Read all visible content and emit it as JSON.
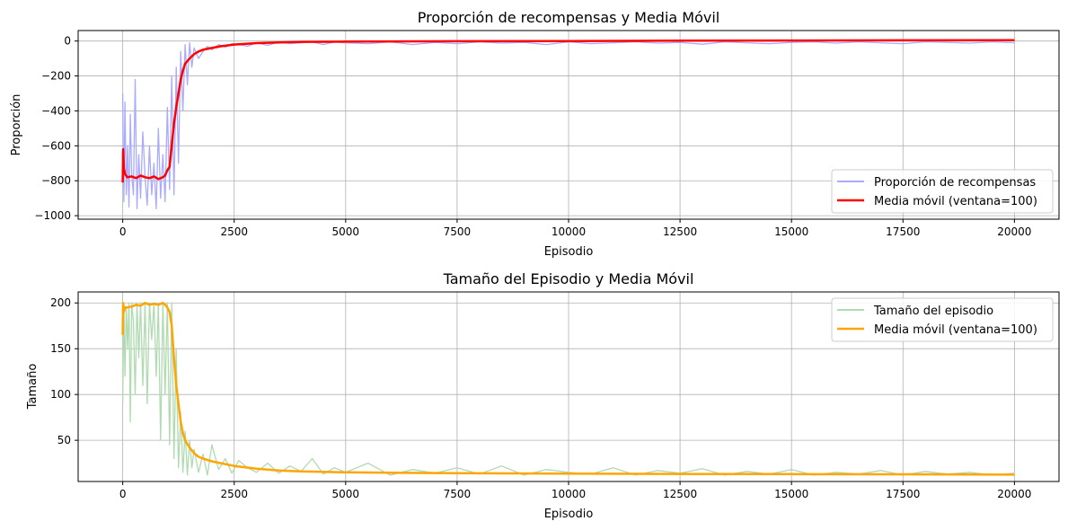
{
  "chart_data": [
    {
      "type": "line",
      "title": "Proporción de recompensas y Media Móvil",
      "xlabel": "Episodio",
      "ylabel": "Proporción",
      "xlim": [
        -1000,
        21000
      ],
      "ylim": [
        -1020,
        60
      ],
      "xticks": [
        0,
        2500,
        5000,
        7500,
        10000,
        12500,
        15000,
        17500,
        20000
      ],
      "xtick_labels": [
        "0",
        "2500",
        "5000",
        "7500",
        "10000",
        "12500",
        "15000",
        "17500",
        "20000"
      ],
      "yticks": [
        0,
        -200,
        -400,
        -600,
        -800,
        -1000
      ],
      "ytick_labels": [
        "0",
        "−200",
        "−400",
        "−600",
        "−800",
        "−1000"
      ],
      "grid": true,
      "legend_position": "lower-right",
      "series": [
        {
          "name": "Proporción de recompensas",
          "color": "#aaaaff",
          "kind": "raw",
          "x": [
            0,
            25,
            50,
            80,
            110,
            140,
            170,
            200,
            240,
            280,
            320,
            360,
            400,
            450,
            500,
            550,
            600,
            650,
            700,
            750,
            800,
            850,
            900,
            950,
            1000,
            1050,
            1100,
            1150,
            1200,
            1250,
            1300,
            1350,
            1400,
            1450,
            1500,
            1550,
            1600,
            1700,
            1800,
            1900,
            2000,
            2150,
            2300,
            2450,
            2600,
            2800,
            3000,
            3250,
            3500,
            3750,
            4000,
            4250,
            4500,
            4750,
            5000,
            5500,
            6000,
            6500,
            7000,
            7500,
            8000,
            8500,
            9000,
            9500,
            10000,
            10500,
            11000,
            11500,
            12000,
            12500,
            13000,
            13500,
            14000,
            14500,
            15000,
            15500,
            16000,
            16500,
            17000,
            17500,
            18000,
            18500,
            19000,
            19500,
            20000
          ],
          "y": [
            -300,
            -920,
            -350,
            -880,
            -600,
            -950,
            -420,
            -760,
            -880,
            -220,
            -960,
            -650,
            -900,
            -520,
            -780,
            -940,
            -600,
            -880,
            -700,
            -960,
            -500,
            -900,
            -650,
            -920,
            -380,
            -850,
            -200,
            -880,
            -150,
            -700,
            -60,
            -400,
            -20,
            -250,
            -10,
            -150,
            -40,
            -100,
            -60,
            -30,
            -50,
            -20,
            -35,
            -15,
            -20,
            -30,
            -10,
            -25,
            -5,
            -15,
            -10,
            -5,
            -20,
            -5,
            -10,
            -15,
            -5,
            -20,
            -8,
            -15,
            -5,
            -12,
            -8,
            -20,
            -5,
            -15,
            -10,
            -5,
            -12,
            -8,
            -18,
            -5,
            -10,
            -15,
            -8,
            -5,
            -12,
            -5,
            -10,
            -15,
            -5,
            -8,
            -12,
            -5,
            -10
          ]
        },
        {
          "name": "Media móvil (ventana=100)",
          "color": "#ff0000",
          "kind": "mean",
          "x": [
            0,
            10,
            25,
            50,
            100,
            200,
            300,
            400,
            500,
            600,
            700,
            800,
            900,
            950,
            1000,
            1050,
            1100,
            1150,
            1200,
            1250,
            1300,
            1350,
            1400,
            1500,
            1600,
            1700,
            1800,
            2000,
            2200,
            2500,
            3000,
            3500,
            4000,
            5000,
            6000,
            7500,
            10000,
            12500,
            15000,
            17500,
            20000
          ],
          "y": [
            -810,
            -620,
            -730,
            -760,
            -780,
            -775,
            -785,
            -770,
            -780,
            -785,
            -775,
            -790,
            -780,
            -770,
            -740,
            -720,
            -600,
            -470,
            -380,
            -300,
            -220,
            -170,
            -130,
            -100,
            -75,
            -60,
            -50,
            -40,
            -30,
            -20,
            -12,
            -8,
            -5,
            -3,
            -2,
            -1,
            0,
            2,
            3,
            4,
            5
          ]
        }
      ]
    },
    {
      "type": "line",
      "title": "Tamaño del Episodio y Media Móvil",
      "xlabel": "Episodio",
      "ylabel": "Tamaño",
      "xlim": [
        -1000,
        21000
      ],
      "ylim": [
        5,
        212
      ],
      "xticks": [
        0,
        2500,
        5000,
        7500,
        10000,
        12500,
        15000,
        17500,
        20000
      ],
      "xtick_labels": [
        "0",
        "2500",
        "5000",
        "7500",
        "10000",
        "12500",
        "15000",
        "17500",
        "20000"
      ],
      "yticks": [
        50,
        100,
        150,
        200
      ],
      "ytick_labels": [
        "50",
        "100",
        "150",
        "200"
      ],
      "grid": true,
      "legend_position": "upper-right",
      "series": [
        {
          "name": "Tamaño del episodio",
          "color": "#b0dab0",
          "kind": "raw",
          "x": [
            0,
            25,
            50,
            80,
            110,
            140,
            170,
            200,
            240,
            280,
            320,
            360,
            400,
            450,
            500,
            550,
            600,
            650,
            700,
            750,
            800,
            850,
            900,
            950,
            1000,
            1050,
            1100,
            1150,
            1200,
            1250,
            1300,
            1350,
            1400,
            1450,
            1500,
            1550,
            1600,
            1700,
            1800,
            1900,
            2000,
            2150,
            2300,
            2450,
            2600,
            2800,
            3000,
            3250,
            3500,
            3750,
            4000,
            4250,
            4500,
            4750,
            5000,
            5500,
            6000,
            6500,
            7000,
            7500,
            8000,
            8500,
            9000,
            9500,
            10000,
            10500,
            11000,
            11500,
            12000,
            12500,
            13000,
            13500,
            14000,
            14500,
            15000,
            15500,
            16000,
            16500,
            17000,
            17500,
            18000,
            18500,
            19000,
            19500,
            20000
          ],
          "y": [
            90,
            200,
            120,
            195,
            150,
            200,
            70,
            200,
            180,
            100,
            200,
            140,
            200,
            110,
            200,
            90,
            200,
            160,
            200,
            120,
            200,
            50,
            200,
            100,
            200,
            45,
            200,
            30,
            150,
            20,
            80,
            15,
            60,
            12,
            50,
            20,
            40,
            15,
            35,
            12,
            45,
            18,
            30,
            14,
            28,
            20,
            15,
            25,
            14,
            22,
            16,
            30,
            13,
            20,
            15,
            25,
            12,
            18,
            14,
            20,
            13,
            22,
            12,
            18,
            15,
            13,
            20,
            12,
            17,
            14,
            19,
            12,
            16,
            13,
            18,
            12,
            15,
            13,
            17,
            12,
            16,
            13,
            15,
            12,
            14
          ]
        },
        {
          "name": "Media móvil (ventana=100)",
          "color": "#ffa500",
          "kind": "mean",
          "x": [
            0,
            10,
            25,
            50,
            100,
            200,
            300,
            400,
            500,
            600,
            700,
            800,
            900,
            950,
            1000,
            1050,
            1100,
            1150,
            1200,
            1250,
            1300,
            1350,
            1400,
            1500,
            1600,
            1700,
            1800,
            2000,
            2200,
            2500,
            3000,
            3500,
            4000,
            5000,
            6000,
            7500,
            10000,
            12500,
            15000,
            17500,
            20000
          ],
          "y": [
            165,
            200,
            190,
            195,
            195,
            196,
            198,
            197,
            200,
            198,
            199,
            198,
            200,
            198,
            195,
            190,
            175,
            140,
            110,
            90,
            70,
            58,
            50,
            42,
            36,
            32,
            30,
            27,
            25,
            22,
            19,
            17,
            16,
            15,
            14.5,
            14,
            13.5,
            13.2,
            13,
            12.8,
            12.5
          ]
        }
      ]
    }
  ]
}
